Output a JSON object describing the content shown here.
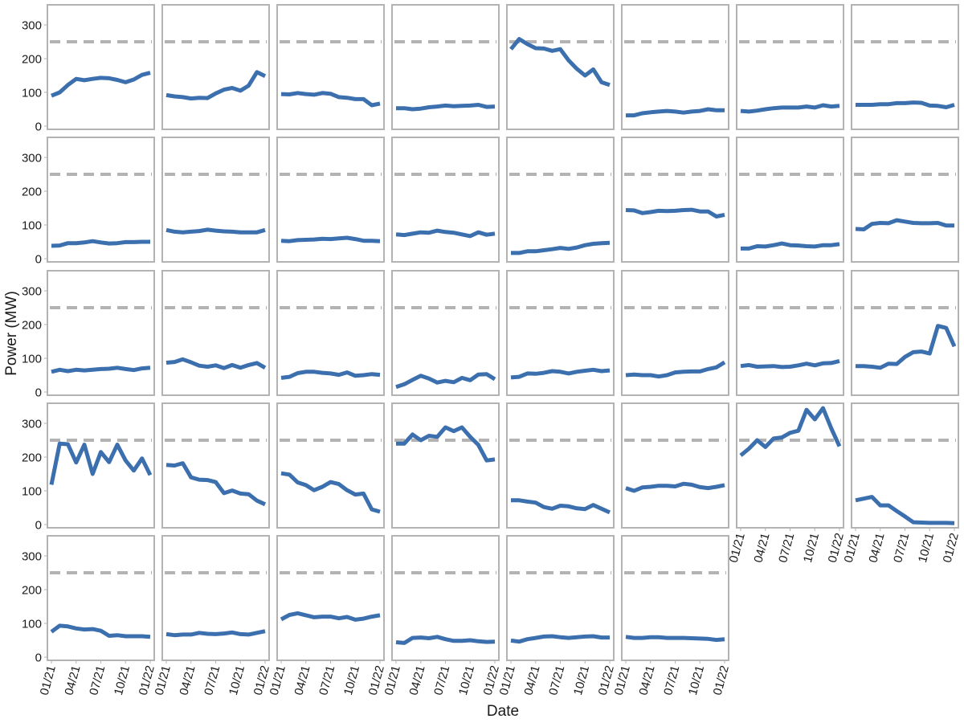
{
  "chart_data": {
    "type": "line",
    "xlabel": "Date",
    "ylabel": "Power (MW)",
    "x": [
      "2021-01",
      "2021-02",
      "2021-03",
      "2021-04",
      "2021-05",
      "2021-06",
      "2021-07",
      "2021-08",
      "2021-09",
      "2021-10",
      "2021-11",
      "2021-12",
      "2022-01"
    ],
    "x_tick_labels": [
      "01/21",
      "04/21",
      "07/21",
      "10/21",
      "01/22"
    ],
    "x_tick_positions": [
      "2021-01",
      "2021-04",
      "2021-07",
      "2021-10",
      "2022-01"
    ],
    "y_ticks": [
      0,
      100,
      200,
      300
    ],
    "ylim": [
      0,
      350
    ],
    "reference_line": {
      "value": 250,
      "style": "dashed",
      "color": "#b3b3b3"
    },
    "line_color": "#3b6fad",
    "panel_border_color": "#b3b3b3",
    "grid": false,
    "panels_per_row": 8,
    "panels": [
      {
        "values": [
          90,
          100,
          122,
          140,
          136,
          140,
          143,
          142,
          137,
          130,
          138,
          152,
          158
        ]
      },
      {
        "values": [
          92,
          88,
          86,
          82,
          84,
          83,
          97,
          108,
          113,
          105,
          120,
          160,
          148
        ]
      },
      {
        "values": [
          95,
          94,
          98,
          95,
          93,
          98,
          96,
          86,
          84,
          80,
          80,
          62,
          67
        ]
      },
      {
        "values": [
          53,
          53,
          50,
          52,
          56,
          58,
          61,
          59,
          60,
          61,
          63,
          57,
          58
        ]
      },
      {
        "values": [
          228,
          258,
          243,
          231,
          230,
          223,
          228,
          195,
          170,
          150,
          168,
          130,
          122
        ]
      },
      {
        "values": [
          32,
          32,
          38,
          41,
          43,
          45,
          43,
          40,
          43,
          45,
          50,
          47,
          47
        ]
      },
      {
        "values": [
          45,
          43,
          46,
          50,
          53,
          55,
          55,
          55,
          58,
          55,
          62,
          58,
          60
        ]
      },
      {
        "values": [
          63,
          63,
          63,
          65,
          65,
          68,
          68,
          70,
          69,
          61,
          60,
          56,
          63
        ]
      },
      {
        "values": [
          38,
          39,
          46,
          46,
          48,
          52,
          48,
          45,
          46,
          49,
          49,
          50,
          50
        ]
      },
      {
        "values": [
          85,
          80,
          78,
          80,
          82,
          86,
          83,
          81,
          80,
          78,
          78,
          78,
          85
        ]
      },
      {
        "values": [
          53,
          52,
          55,
          56,
          57,
          59,
          58,
          60,
          62,
          58,
          53,
          53,
          52
        ]
      },
      {
        "values": [
          72,
          70,
          74,
          78,
          77,
          83,
          79,
          77,
          72,
          67,
          78,
          71,
          74
        ]
      },
      {
        "values": [
          17,
          17,
          22,
          22,
          25,
          28,
          32,
          29,
          33,
          40,
          44,
          46,
          47
        ]
      },
      {
        "values": [
          144,
          143,
          135,
          138,
          142,
          141,
          142,
          144,
          145,
          140,
          140,
          125,
          130
        ]
      },
      {
        "values": [
          30,
          30,
          37,
          36,
          40,
          45,
          40,
          39,
          37,
          36,
          40,
          40,
          43
        ]
      },
      {
        "values": [
          88,
          87,
          103,
          106,
          105,
          114,
          110,
          106,
          105,
          105,
          106,
          98,
          98
        ]
      },
      {
        "values": [
          60,
          66,
          62,
          66,
          64,
          66,
          68,
          69,
          72,
          68,
          65,
          70,
          72
        ]
      },
      {
        "values": [
          87,
          89,
          97,
          88,
          78,
          75,
          79,
          71,
          80,
          72,
          80,
          86,
          72
        ]
      },
      {
        "values": [
          42,
          45,
          56,
          60,
          60,
          57,
          55,
          51,
          58,
          48,
          50,
          53,
          51
        ]
      },
      {
        "values": [
          15,
          23,
          36,
          48,
          40,
          28,
          33,
          29,
          42,
          35,
          52,
          53,
          38
        ]
      },
      {
        "values": [
          43,
          45,
          55,
          54,
          57,
          62,
          60,
          55,
          60,
          63,
          66,
          62,
          64
        ]
      },
      {
        "values": [
          50,
          52,
          50,
          50,
          46,
          50,
          58,
          60,
          61,
          61,
          68,
          73,
          88
        ]
      },
      {
        "values": [
          77,
          80,
          75,
          76,
          77,
          74,
          75,
          79,
          84,
          79,
          85,
          86,
          92
        ]
      },
      {
        "values": [
          77,
          77,
          75,
          72,
          84,
          83,
          104,
          118,
          120,
          114,
          196,
          190,
          135
        ]
      },
      {
        "values": [
          118,
          240,
          238,
          184,
          237,
          150,
          215,
          185,
          237,
          190,
          160,
          196,
          147
        ]
      },
      {
        "values": [
          177,
          175,
          182,
          140,
          133,
          132,
          126,
          93,
          101,
          92,
          90,
          71,
          60
        ]
      },
      {
        "values": [
          152,
          148,
          125,
          117,
          102,
          112,
          126,
          120,
          102,
          89,
          92,
          45,
          38
        ]
      },
      {
        "values": [
          240,
          240,
          267,
          250,
          263,
          260,
          288,
          277,
          288,
          260,
          236,
          190,
          193
        ]
      },
      {
        "values": [
          72,
          72,
          68,
          65,
          52,
          47,
          56,
          54,
          48,
          46,
          58,
          47,
          36
        ]
      },
      {
        "values": [
          108,
          100,
          110,
          112,
          115,
          115,
          113,
          121,
          118,
          111,
          108,
          112,
          117
        ]
      },
      {
        "values": [
          205,
          225,
          250,
          230,
          255,
          258,
          272,
          278,
          340,
          312,
          345,
          285,
          232
        ]
      },
      {
        "values": [
          72,
          77,
          82,
          57,
          57,
          40,
          24,
          7,
          6,
          5,
          5,
          5,
          4
        ]
      },
      {
        "values": [
          75,
          93,
          91,
          85,
          82,
          83,
          78,
          63,
          65,
          62,
          62,
          62,
          60
        ]
      },
      {
        "values": [
          68,
          65,
          67,
          67,
          72,
          69,
          68,
          70,
          73,
          68,
          67,
          72,
          77
        ]
      },
      {
        "values": [
          112,
          125,
          130,
          124,
          118,
          120,
          120,
          115,
          119,
          111,
          114,
          120,
          124
        ]
      },
      {
        "values": [
          44,
          42,
          57,
          58,
          56,
          60,
          53,
          48,
          48,
          50,
          47,
          45,
          46
        ]
      },
      {
        "values": [
          49,
          46,
          53,
          57,
          61,
          62,
          59,
          57,
          59,
          61,
          62,
          58,
          58
        ]
      },
      {
        "values": [
          60,
          57,
          57,
          59,
          59,
          57,
          57,
          57,
          56,
          55,
          54,
          51,
          53
        ]
      }
    ]
  }
}
